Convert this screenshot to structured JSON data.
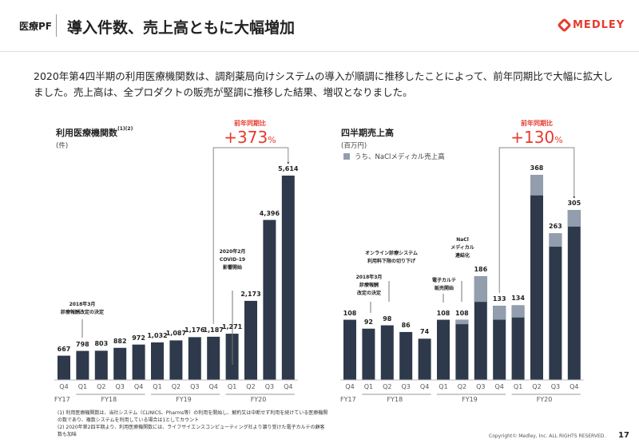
{
  "header": {
    "tag": "医療PF",
    "title": "導入件数、売上高ともに大幅増加",
    "logo": "MEDLEY"
  },
  "lead": "2020年第4四半期の利用医療機関数は、調剤薬局向けシステムの導入が順調に推移したことによって、前年同期比で大幅に拡大しました。売上高は、全プロダクトの販売が堅調に推移した結果、増収となりました。",
  "colors": {
    "bar": "#2e3a4b",
    "nacl": "#929dae",
    "accent": "#e63b2e"
  },
  "chart_data": [
    {
      "type": "bar",
      "title": "利用医療機関数",
      "title_sup": "(1)(2)",
      "unit": "(件)",
      "categories": [
        "Q4",
        "Q1",
        "Q2",
        "Q3",
        "Q4",
        "Q1",
        "Q2",
        "Q3",
        "Q4",
        "Q1",
        "Q2",
        "Q3",
        "Q4"
      ],
      "fiscal_years": [
        "FY17",
        "FY18",
        "FY19",
        "FY20"
      ],
      "values": [
        667,
        798,
        803,
        882,
        972,
        1032,
        1087,
        1176,
        1187,
        1271,
        2173,
        4396,
        5614
      ],
      "value_labels": [
        "667",
        "798",
        "803",
        "882",
        "972",
        "1,032",
        "1,087",
        "1,176",
        "1,187",
        "1,271",
        "2,173",
        "4,396",
        "5,614"
      ],
      "yoy_label": "前年同期比",
      "yoy_value": "+373",
      "yoy_unit": "%",
      "annotations": [
        "2018年3月\n診療報酬改定の決定",
        "2020年2月\nCOVID-19\n影響開始"
      ]
    },
    {
      "type": "bar",
      "stacked": true,
      "title": "四半期売上高",
      "unit": "(百万円)",
      "legend": "うち、NaClメディカル売上高",
      "categories": [
        "Q4",
        "Q1",
        "Q2",
        "Q3",
        "Q4",
        "Q1",
        "Q2",
        "Q3",
        "Q4",
        "Q1",
        "Q2",
        "Q3",
        "Q4"
      ],
      "fiscal_years": [
        "FY17",
        "FY18",
        "FY19",
        "FY20"
      ],
      "values": [
        108,
        92,
        98,
        86,
        74,
        108,
        108,
        186,
        133,
        134,
        368,
        263,
        305
      ],
      "nacl_values": [
        0,
        0,
        0,
        0,
        0,
        0,
        8,
        46,
        25,
        22,
        37,
        24,
        30
      ],
      "yoy_label": "前年同期比",
      "yoy_value": "+130",
      "yoy_unit": "%",
      "annotations": [
        "2018年3月\n診療報酬\n改定の決定",
        "オンライン診療システム\n利用料下限の切り下げ",
        "電子カルテ\n販売開始",
        "NaCl\nメディカル\n連結化"
      ]
    }
  ],
  "footnotes": [
    "(1) 利用医療機関数は、当社システム（CLINICS、Pharms等）の利用を開始し、解約又は中断せず利用を続けている医療機関の数であり、複数システムを利用している場合は1としてカウント",
    "(2) 2020年第2四半期より、利用医療機関数には、ライフサイエンスコンピューティング社より譲り受けた電子カルテの顧客数も加味"
  ],
  "footer": {
    "copyright": "Copyright© Medley, Inc. ALL RIGHTS RESERVED.",
    "page": "17"
  }
}
